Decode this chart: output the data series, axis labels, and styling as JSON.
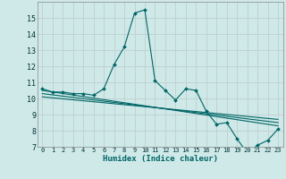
{
  "xlabel": "Humidex (Indice chaleur)",
  "background_color": "#cfe8e8",
  "grid_color": "#c0d0d0",
  "line_color": "#006666",
  "xlim": [
    -0.5,
    23.5
  ],
  "ylim": [
    7,
    16
  ],
  "yticks": [
    7,
    8,
    9,
    10,
    11,
    12,
    13,
    14,
    15
  ],
  "xticks": [
    0,
    1,
    2,
    3,
    4,
    5,
    6,
    7,
    8,
    9,
    10,
    11,
    12,
    13,
    14,
    15,
    16,
    17,
    18,
    19,
    20,
    21,
    22,
    23
  ],
  "series": [
    {
      "x": [
        0,
        1,
        2,
        3,
        4,
        5,
        6,
        7,
        8,
        9,
        10,
        11,
        12,
        13,
        14,
        15,
        16,
        17,
        18,
        19,
        20,
        21,
        22,
        23
      ],
      "y": [
        10.6,
        10.4,
        10.4,
        10.3,
        10.3,
        10.2,
        10.6,
        12.1,
        13.2,
        15.3,
        15.5,
        11.1,
        10.5,
        9.9,
        10.6,
        10.5,
        9.2,
        8.4,
        8.5,
        7.5,
        6.6,
        7.1,
        7.4,
        8.1
      ]
    },
    {
      "x": [
        0,
        23
      ],
      "y": [
        10.5,
        8.3
      ]
    },
    {
      "x": [
        0,
        23
      ],
      "y": [
        10.3,
        8.5
      ]
    },
    {
      "x": [
        0,
        23
      ],
      "y": [
        10.1,
        8.7
      ]
    }
  ]
}
